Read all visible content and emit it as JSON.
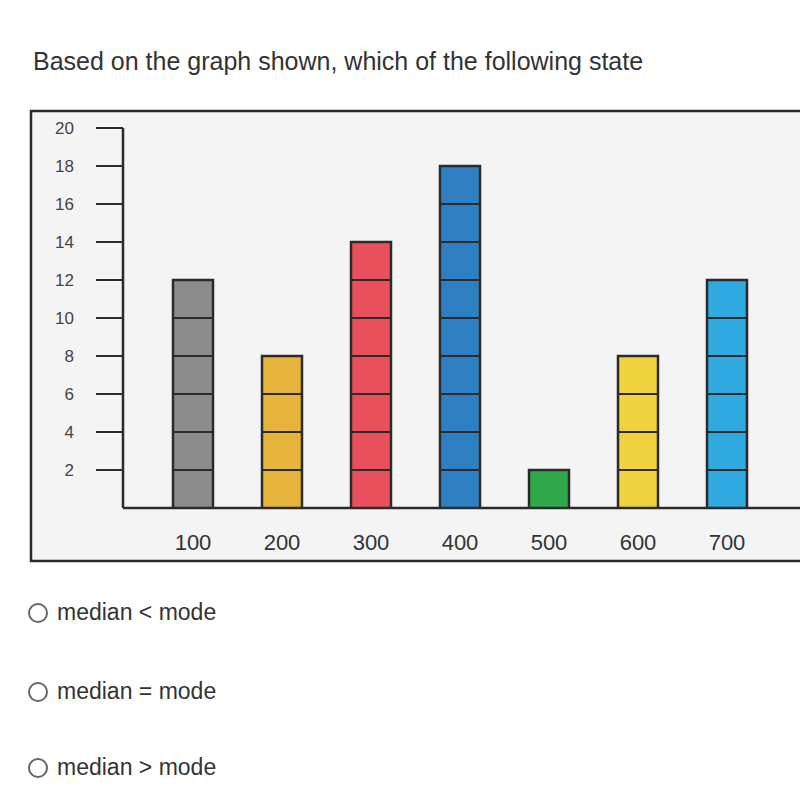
{
  "question": "Based on the graph shown, which of the following state",
  "chart_data": {
    "type": "bar",
    "categories": [
      "100",
      "200",
      "300",
      "400",
      "500",
      "600",
      "700"
    ],
    "values": [
      12,
      8,
      14,
      18,
      2,
      8,
      12
    ],
    "colors": [
      "#8c8c8c",
      "#e6b43a",
      "#e8505b",
      "#2e7fc1",
      "#2fa84a",
      "#f0d23f",
      "#2fa9e0"
    ],
    "ylim": [
      0,
      20
    ],
    "yticks": [
      2,
      4,
      6,
      8,
      10,
      12,
      14,
      16,
      18,
      20
    ],
    "grid": false
  },
  "options": [
    "median < mode",
    "median = mode",
    "median > mode"
  ]
}
